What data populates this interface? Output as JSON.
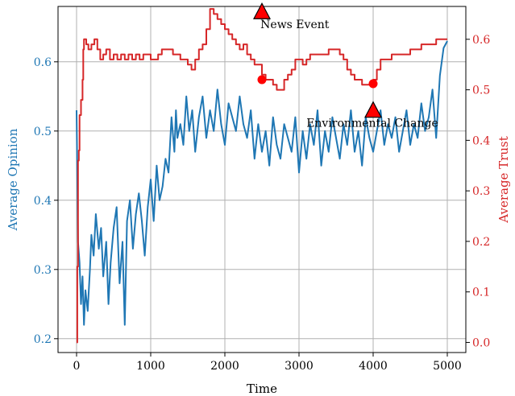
{
  "chart_data": {
    "type": "line",
    "title": "",
    "xlabel": "Time",
    "ylabel_left": "Average Opinion",
    "ylabel_right": "Average Trust",
    "xlim": [
      -250,
      5250
    ],
    "ylim_left": [
      0.18,
      0.68
    ],
    "ylim_right": [
      -0.02,
      0.665
    ],
    "x_ticks": [
      0,
      1000,
      2000,
      3000,
      4000,
      5000
    ],
    "x_tick_labels": [
      "0",
      "1000",
      "2000",
      "3000",
      "4000",
      "5000"
    ],
    "y_left_ticks": [
      0.2,
      0.3,
      0.4,
      0.5,
      0.6
    ],
    "y_left_tick_labels": [
      "0.2",
      "0.3",
      "0.4",
      "0.5",
      "0.6"
    ],
    "y_right_ticks": [
      0.0,
      0.1,
      0.2,
      0.3,
      0.4,
      0.5,
      0.6
    ],
    "y_right_tick_labels": [
      "0.0",
      "0.1",
      "0.2",
      "0.3",
      "0.4",
      "0.5",
      "0.6"
    ],
    "grid": true,
    "colors": {
      "opinion": "#1f77b4",
      "trust": "#d62728",
      "marker": "#ff0000"
    },
    "series": [
      {
        "axis": "left",
        "color": "#1f77b4",
        "x": [
          0,
          20,
          40,
          60,
          80,
          100,
          120,
          150,
          180,
          200,
          230,
          260,
          300,
          330,
          360,
          400,
          430,
          460,
          500,
          540,
          580,
          620,
          650,
          680,
          720,
          760,
          800,
          840,
          880,
          920,
          960,
          1000,
          1040,
          1080,
          1120,
          1160,
          1200,
          1240,
          1280,
          1320,
          1340,
          1360,
          1400,
          1440,
          1480,
          1520,
          1560,
          1600,
          1650,
          1700,
          1750,
          1800,
          1850,
          1900,
          1950,
          2000,
          2050,
          2100,
          2150,
          2200,
          2250,
          2300,
          2350,
          2400,
          2450,
          2500,
          2550,
          2600,
          2650,
          2700,
          2750,
          2800,
          2850,
          2900,
          2950,
          3000,
          3050,
          3100,
          3150,
          3200,
          3250,
          3300,
          3350,
          3400,
          3450,
          3500,
          3550,
          3600,
          3650,
          3700,
          3750,
          3800,
          3850,
          3900,
          3950,
          4000,
          4050,
          4100,
          4150,
          4200,
          4250,
          4300,
          4350,
          4400,
          4450,
          4500,
          4550,
          4600,
          4650,
          4700,
          4750,
          4800,
          4850,
          4900,
          4950,
          5000
        ],
        "values": [
          0.53,
          0.34,
          0.31,
          0.25,
          0.29,
          0.22,
          0.27,
          0.24,
          0.3,
          0.35,
          0.32,
          0.38,
          0.33,
          0.36,
          0.29,
          0.34,
          0.25,
          0.31,
          0.36,
          0.39,
          0.28,
          0.34,
          0.22,
          0.37,
          0.4,
          0.33,
          0.38,
          0.41,
          0.37,
          0.32,
          0.39,
          0.43,
          0.37,
          0.45,
          0.4,
          0.42,
          0.46,
          0.44,
          0.52,
          0.47,
          0.53,
          0.49,
          0.51,
          0.48,
          0.55,
          0.5,
          0.53,
          0.47,
          0.52,
          0.55,
          0.49,
          0.53,
          0.5,
          0.56,
          0.51,
          0.48,
          0.54,
          0.52,
          0.5,
          0.55,
          0.51,
          0.49,
          0.53,
          0.46,
          0.51,
          0.47,
          0.5,
          0.45,
          0.52,
          0.48,
          0.46,
          0.51,
          0.49,
          0.47,
          0.52,
          0.44,
          0.5,
          0.46,
          0.51,
          0.48,
          0.53,
          0.45,
          0.5,
          0.47,
          0.52,
          0.49,
          0.46,
          0.51,
          0.48,
          0.53,
          0.47,
          0.5,
          0.45,
          0.52,
          0.49,
          0.47,
          0.5,
          0.53,
          0.48,
          0.51,
          0.49,
          0.52,
          0.47,
          0.5,
          0.53,
          0.48,
          0.51,
          0.49,
          0.54,
          0.5,
          0.52,
          0.56,
          0.49,
          0.58,
          0.62,
          0.63
        ]
      },
      {
        "axis": "right",
        "color": "#d62728",
        "x": [
          0,
          10,
          20,
          30,
          40,
          60,
          80,
          90,
          100,
          130,
          160,
          200,
          240,
          280,
          320,
          360,
          400,
          450,
          500,
          550,
          600,
          650,
          700,
          750,
          800,
          850,
          900,
          950,
          1000,
          1050,
          1100,
          1150,
          1200,
          1300,
          1400,
          1500,
          1550,
          1600,
          1650,
          1700,
          1750,
          1800,
          1850,
          1900,
          1950,
          2000,
          2050,
          2100,
          2150,
          2200,
          2250,
          2300,
          2350,
          2400,
          2450,
          2500,
          2550,
          2600,
          2650,
          2700,
          2750,
          2800,
          2850,
          2900,
          2950,
          3000,
          3050,
          3100,
          3150,
          3200,
          3250,
          3300,
          3350,
          3400,
          3450,
          3500,
          3550,
          3600,
          3650,
          3700,
          3750,
          3800,
          3850,
          3900,
          3950,
          4000,
          4050,
          4100,
          4150,
          4200,
          4250,
          4300,
          4350,
          4400,
          4450,
          4500,
          4550,
          4600,
          4650,
          4700,
          4750,
          4800,
          4850,
          4900,
          4950,
          5000
        ],
        "values": [
          0.0,
          0.15,
          0.36,
          0.38,
          0.45,
          0.48,
          0.52,
          0.58,
          0.6,
          0.59,
          0.58,
          0.59,
          0.6,
          0.58,
          0.56,
          0.57,
          0.58,
          0.56,
          0.57,
          0.56,
          0.57,
          0.56,
          0.57,
          0.56,
          0.57,
          0.56,
          0.57,
          0.57,
          0.56,
          0.56,
          0.57,
          0.58,
          0.58,
          0.57,
          0.56,
          0.55,
          0.54,
          0.56,
          0.58,
          0.59,
          0.62,
          0.66,
          0.65,
          0.64,
          0.63,
          0.62,
          0.61,
          0.6,
          0.59,
          0.58,
          0.59,
          0.57,
          0.56,
          0.55,
          0.55,
          0.53,
          0.52,
          0.52,
          0.51,
          0.5,
          0.5,
          0.52,
          0.53,
          0.54,
          0.56,
          0.56,
          0.55,
          0.56,
          0.57,
          0.57,
          0.57,
          0.57,
          0.57,
          0.58,
          0.58,
          0.58,
          0.57,
          0.56,
          0.54,
          0.53,
          0.52,
          0.52,
          0.51,
          0.51,
          0.51,
          0.52,
          0.54,
          0.56,
          0.56,
          0.56,
          0.57,
          0.57,
          0.57,
          0.57,
          0.57,
          0.58,
          0.58,
          0.58,
          0.59,
          0.59,
          0.59,
          0.59,
          0.6,
          0.6,
          0.6,
          0.6
        ]
      }
    ],
    "event_markers": [
      {
        "x": 2500,
        "y": 0.52
      },
      {
        "x": 4000,
        "y": 0.512
      }
    ],
    "annotations": [
      {
        "label": "News Event",
        "x": 2500,
        "y": 0.655,
        "marker": "triangle",
        "text_x": 2480,
        "text_y": 0.622
      },
      {
        "label": "Environmental Change",
        "x": 4000,
        "y": 0.46,
        "marker": "triangle",
        "text_x": 3100,
        "text_y": 0.427
      }
    ]
  }
}
